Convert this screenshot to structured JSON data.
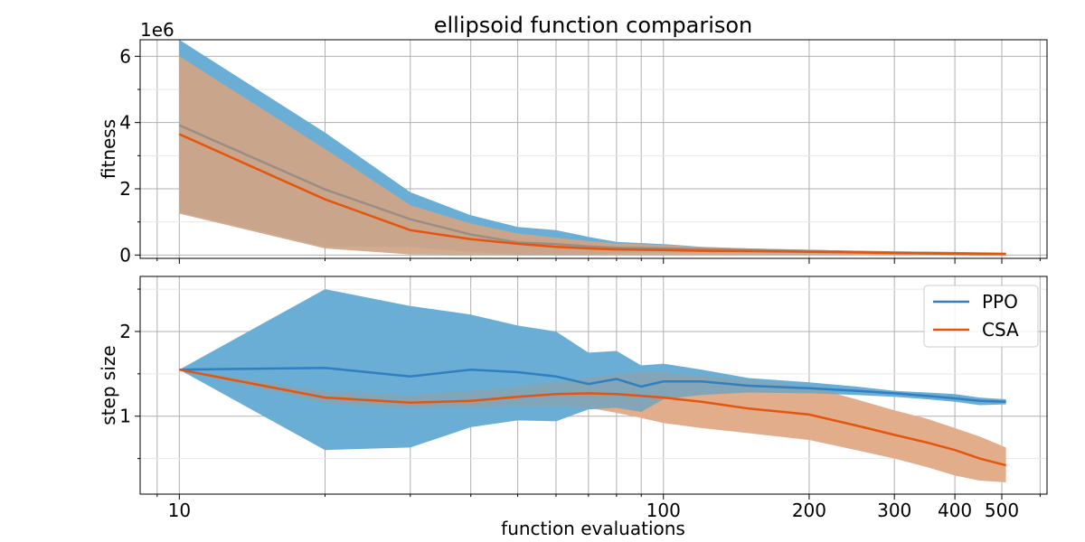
{
  "chart_data": {
    "type": "line",
    "title": "ellipsoid function comparison",
    "xlabel": "function evaluations",
    "x_scale": "log",
    "xlim": [
      8.3,
      620
    ],
    "x_tick_labels": [
      "10",
      "100",
      "200",
      "300",
      "400",
      "500"
    ],
    "x_tick_values": [
      10,
      100,
      200,
      300,
      400,
      500
    ],
    "legend": {
      "position": "top-right",
      "entries": [
        "PPO",
        "CSA"
      ]
    },
    "colors": {
      "PPO": "#2f7fc1",
      "PPO_band": "#6aaed6",
      "CSA": "#e6550d",
      "CSA_band": "#fdbb8f",
      "overlap": "#b09682",
      "PPO_on_band": "#9a8e84"
    },
    "panels": [
      {
        "name": "fitness",
        "ylabel": "fitness",
        "offset_label": "1e6",
        "ylim": [
          -0.1,
          6.5
        ],
        "y_tick_labels": [
          "0",
          "2",
          "4",
          "6"
        ],
        "y_tick_values": [
          0,
          2,
          4,
          6
        ],
        "series": [
          {
            "name": "PPO",
            "x": [
              10,
              20,
              30,
              40,
              50,
              60,
              70,
              80,
              100,
              120,
              150,
              200,
              250,
              300,
              350,
              400,
              450,
              510
            ],
            "mean": [
              3.92,
              1.98,
              1.08,
              0.62,
              0.38,
              0.33,
              0.26,
              0.22,
              0.2,
              0.18,
              0.15,
              0.12,
              0.1,
              0.08,
              0.07,
              0.06,
              0.05,
              0.04
            ],
            "upper": [
              6.5,
              3.7,
              1.9,
              1.2,
              0.85,
              0.75,
              0.55,
              0.4,
              0.33,
              0.25,
              0.2,
              0.16,
              0.13,
              0.1,
              0.09,
              0.08,
              0.07,
              0.06
            ],
            "lower": [
              1.3,
              0.25,
              0.25,
              0.1,
              0.0,
              0.0,
              0.0,
              0.05,
              0.07,
              0.08,
              0.07,
              0.05,
              0.04,
              0.03,
              0.02,
              0.02,
              0.02,
              0.01
            ]
          },
          {
            "name": "CSA",
            "x": [
              10,
              20,
              30,
              40,
              50,
              60,
              70,
              80,
              100,
              120,
              150,
              200,
              250,
              300,
              350,
              400,
              450,
              510
            ],
            "mean": [
              3.65,
              1.68,
              0.75,
              0.48,
              0.34,
              0.25,
              0.2,
              0.17,
              0.15,
              0.13,
              0.12,
              0.1,
              0.08,
              0.06,
              0.05,
              0.04,
              0.03,
              0.03
            ],
            "upper": [
              6.0,
              3.2,
              1.5,
              0.95,
              0.65,
              0.52,
              0.42,
              0.35,
              0.3,
              0.24,
              0.2,
              0.16,
              0.13,
              0.1,
              0.08,
              0.07,
              0.06,
              0.05
            ],
            "lower": [
              1.25,
              0.2,
              0.02,
              0.0,
              0.0,
              0.0,
              0.0,
              0.0,
              0.0,
              0.0,
              0.0,
              0.0,
              0.0,
              0.0,
              0.0,
              0.0,
              0.0,
              0.0
            ]
          }
        ]
      },
      {
        "name": "step-size",
        "ylabel": "step size",
        "ylim": [
          0.08,
          2.65
        ],
        "y_tick_labels": [
          "1",
          "2"
        ],
        "y_tick_values": [
          1,
          2
        ],
        "series": [
          {
            "name": "PPO",
            "x": [
              10,
              20,
              30,
              40,
              50,
              60,
              70,
              80,
              90,
              100,
              120,
              150,
              200,
              250,
              300,
              350,
              400,
              450,
              510
            ],
            "mean": [
              1.55,
              1.57,
              1.47,
              1.55,
              1.52,
              1.47,
              1.38,
              1.44,
              1.35,
              1.41,
              1.41,
              1.36,
              1.33,
              1.3,
              1.27,
              1.24,
              1.21,
              1.18,
              1.17
            ],
            "upper": [
              1.55,
              2.5,
              2.3,
              2.2,
              2.07,
              2.0,
              1.75,
              1.77,
              1.6,
              1.62,
              1.55,
              1.45,
              1.4,
              1.35,
              1.3,
              1.28,
              1.26,
              1.22,
              1.2
            ],
            "lower": [
              1.55,
              0.6,
              0.63,
              0.87,
              0.95,
              0.94,
              1.08,
              1.1,
              1.05,
              1.2,
              1.25,
              1.28,
              1.27,
              1.25,
              1.23,
              1.2,
              1.17,
              1.13,
              1.14
            ]
          },
          {
            "name": "CSA",
            "x": [
              10,
              20,
              30,
              40,
              50,
              60,
              70,
              80,
              90,
              100,
              120,
              150,
              200,
              250,
              300,
              350,
              400,
              450,
              510
            ],
            "mean": [
              1.55,
              1.22,
              1.16,
              1.18,
              1.23,
              1.26,
              1.27,
              1.26,
              1.24,
              1.22,
              1.17,
              1.09,
              1.02,
              0.89,
              0.78,
              0.69,
              0.6,
              0.5,
              0.42
            ],
            "upper": [
              1.55,
              1.3,
              1.25,
              1.3,
              1.35,
              1.4,
              1.45,
              1.5,
              1.52,
              1.52,
              1.48,
              1.42,
              1.35,
              1.2,
              1.07,
              0.97,
              0.86,
              0.76,
              0.63
            ],
            "lower": [
              1.55,
              1.15,
              1.09,
              1.1,
              1.12,
              1.12,
              1.1,
              1.04,
              0.98,
              0.92,
              0.86,
              0.8,
              0.72,
              0.6,
              0.5,
              0.4,
              0.3,
              0.24,
              0.22
            ]
          }
        ]
      }
    ]
  }
}
